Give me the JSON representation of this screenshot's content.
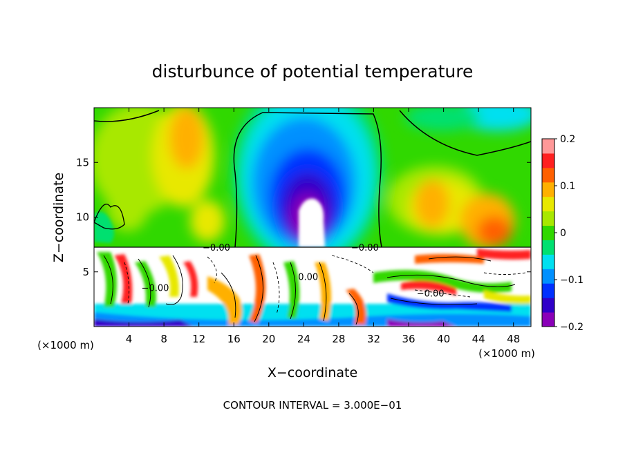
{
  "chart_data": {
    "type": "heatmap",
    "title": "disturbunce of potential temperature",
    "xlabel": "X−coordinate",
    "ylabel": "Z−coordinate",
    "x_unit_left": "(×1000 m)",
    "x_unit_right": "(×1000 m)",
    "footer": "CONTOUR INTERVAL = 3.000E−01",
    "xlim": [
      0,
      50
    ],
    "ylim": [
      0,
      20
    ],
    "x_ticks": [
      "4",
      "8",
      "12",
      "16",
      "20",
      "24",
      "28",
      "32",
      "36",
      "40",
      "44",
      "48"
    ],
    "y_ticks": [
      "5",
      "10",
      "15"
    ],
    "colorbar": {
      "range": [
        -0.2,
        0.2
      ],
      "tick_labels": [
        "0.2",
        "0.1",
        "0",
        "−0.1",
        "−0.2"
      ],
      "colors": [
        "#8a00b8",
        "#3000c8",
        "#0030ff",
        "#0090ff",
        "#00e0f0",
        "#00e070",
        "#30d800",
        "#a8e800",
        "#e8e800",
        "#ffb000",
        "#ff6000",
        "#ff2020",
        "#ff9898"
      ]
    },
    "contour_labels": [
      {
        "text": "−0.00",
        "x": 14,
        "z": 7.2
      },
      {
        "text": "−0.00",
        "x": 31,
        "z": 7.2
      },
      {
        "text": "−0.00",
        "x": 38.5,
        "z": 3.0
      },
      {
        "text": "−0.00",
        "x": 7,
        "z": 3.5
      },
      {
        "text": "0.00",
        "x": 24.5,
        "z": 4.5
      }
    ]
  }
}
